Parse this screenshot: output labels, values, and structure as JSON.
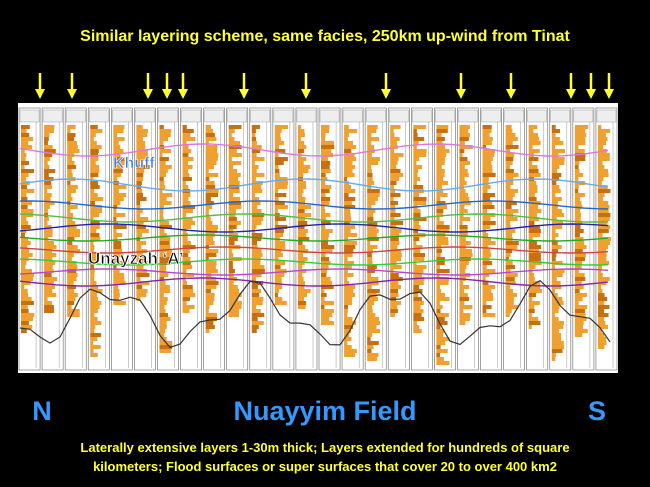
{
  "title": "Similar layering scheme, same facies, 250km up-wind from Tinat",
  "panel": {
    "upper_label": "Khuff",
    "lower_label": "Unayzah ‘A’"
  },
  "footer": {
    "left": "N",
    "center": "Nuayyim Field",
    "right": "S"
  },
  "caption": {
    "lines": [
      "Laterally extensive layers 1-30m thick; Layers extended for hundreds of square",
      "kilometers; Flood surfaces or super surfaces that cover 20 to over 400 km2"
    ]
  }
}
